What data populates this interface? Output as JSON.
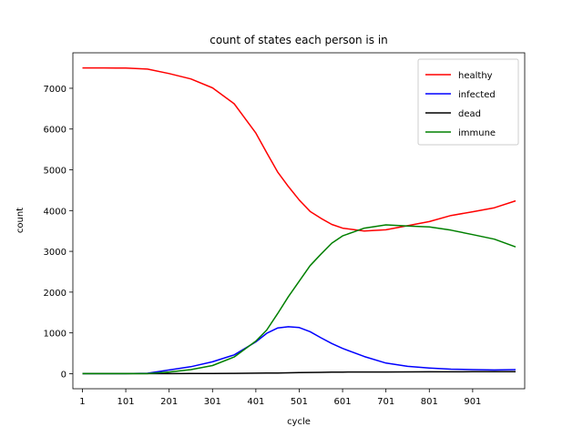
{
  "chart_data": {
    "type": "line",
    "title": "count of states each person is in",
    "xlabel": "cycle",
    "ylabel": "count",
    "xlim": [
      -21,
      1021
    ],
    "ylim": [
      -370,
      7870
    ],
    "xticks": [
      1,
      101,
      201,
      301,
      401,
      501,
      601,
      701,
      801,
      901
    ],
    "yticks": [
      0,
      1000,
      2000,
      3000,
      4000,
      5000,
      6000,
      7000
    ],
    "grid": false,
    "legend_position": "top-right",
    "x": [
      1,
      51,
      101,
      151,
      201,
      251,
      301,
      351,
      401,
      426,
      451,
      476,
      501,
      526,
      551,
      576,
      601,
      651,
      701,
      751,
      801,
      851,
      901,
      951,
      1000
    ],
    "series": [
      {
        "name": "healthy",
        "color": "#ff0000",
        "values": [
          7500,
          7500,
          7495,
          7470,
          7360,
          7230,
          7010,
          6620,
          5900,
          5420,
          4950,
          4590,
          4260,
          3980,
          3810,
          3660,
          3570,
          3500,
          3530,
          3630,
          3730,
          3880,
          3970,
          4070,
          4240
        ]
      },
      {
        "name": "infected",
        "color": "#0000ff",
        "values": [
          0,
          0,
          0,
          10,
          90,
          170,
          290,
          460,
          780,
          990,
          1120,
          1150,
          1130,
          1030,
          880,
          740,
          620,
          420,
          260,
          180,
          140,
          110,
          100,
          90,
          100
        ]
      },
      {
        "name": "dead",
        "color": "#000000",
        "values": [
          0,
          0,
          0,
          0,
          0,
          2,
          5,
          8,
          12,
          14,
          17,
          21,
          26,
          30,
          33,
          36,
          38,
          40,
          42,
          44,
          45,
          46,
          47,
          48,
          50
        ]
      },
      {
        "name": "immune",
        "color": "#008000",
        "values": [
          0,
          0,
          0,
          0,
          40,
          100,
          200,
          410,
          800,
          1070,
          1470,
          1890,
          2270,
          2650,
          2930,
          3200,
          3380,
          3570,
          3650,
          3620,
          3600,
          3520,
          3410,
          3300,
          3110
        ]
      }
    ]
  }
}
